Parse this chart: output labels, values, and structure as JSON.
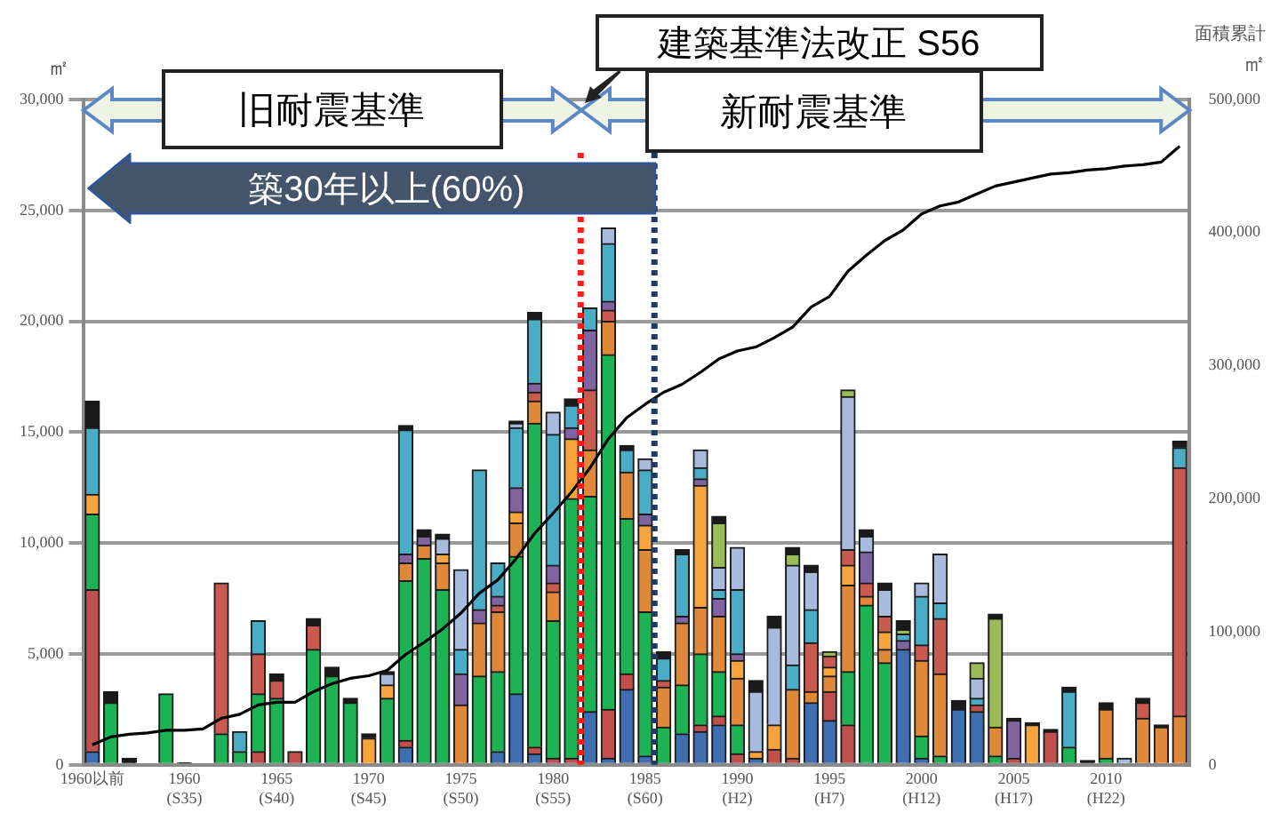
{
  "chart_data": {
    "type": "bar",
    "stacked": true,
    "ylabel": "㎡",
    "y2label": "㎡",
    "annotations": [
      "旧耐震基準",
      "新耐震基準",
      "築30年以上(60%)",
      "面積累計",
      "建築基準法改正 S56"
    ],
    "categories": [
      "1960以前",
      null,
      null,
      null,
      null,
      "1960\n(S35)",
      null,
      null,
      null,
      null,
      "1965\n(S40)",
      null,
      null,
      null,
      null,
      "1970\n(S45)",
      null,
      null,
      null,
      null,
      "1975\n(S50)",
      null,
      null,
      null,
      null,
      "1980\n(S55)",
      null,
      null,
      null,
      null,
      "1985\n(S60)",
      null,
      null,
      null,
      null,
      "1990\n(H2)",
      null,
      null,
      null,
      null,
      "1995\n(H7)",
      null,
      null,
      null,
      null,
      "2000\n(H12)",
      null,
      null,
      null,
      null,
      "2005\n(H17)",
      null,
      null,
      null,
      null,
      "2010\n(H22)",
      null,
      null,
      null,
      null
    ],
    "series": [
      {
        "color": "#3f6fb0",
        "values": [
          600,
          null,
          null,
          null,
          null,
          null,
          null,
          null,
          null,
          null,
          null,
          null,
          null,
          null,
          null,
          null,
          null,
          800,
          null,
          null,
          null,
          null,
          600,
          3200,
          500,
          null,
          null,
          2400,
          300,
          3400,
          400,
          null,
          1400,
          1500,
          1800,
          null,
          300,
          null,
          null,
          2800,
          2000,
          null,
          null,
          null,
          5200,
          300,
          null,
          2500,
          2400,
          null,
          null,
          null,
          null,
          null,
          null,
          null,
          null,
          null,
          null,
          null
        ]
      },
      {
        "color": "#c0504d",
        "values": [
          7300,
          null,
          null,
          null,
          null,
          null,
          null,
          null,
          null,
          600,
          null,
          600,
          null,
          null,
          null,
          null,
          null,
          300,
          null,
          null,
          null,
          null,
          null,
          null,
          300,
          300,
          300,
          null,
          2200,
          700,
          null,
          null,
          null,
          300,
          400,
          500,
          null,
          700,
          300,
          null,
          1300,
          1800,
          null,
          null,
          null,
          null,
          null,
          null,
          300,
          null,
          300,
          null,
          1500,
          null,
          null,
          null,
          null,
          null,
          null,
          null
        ]
      },
      {
        "color": "#1db254",
        "values": [
          3400,
          2800,
          null,
          null,
          3200,
          null,
          null,
          1400,
          600,
          2600,
          3000,
          null,
          5200,
          4000,
          2800,
          null,
          3000,
          7200,
          9300,
          7900,
          null,
          4000,
          3600,
          6200,
          14600,
          6200,
          11700,
          9700,
          16000,
          7000,
          6500,
          1700,
          2200,
          3200,
          2000,
          1300,
          null,
          null,
          null,
          null,
          null,
          2400,
          7200,
          4600,
          null,
          1000,
          400,
          null,
          null,
          400,
          null,
          null,
          null,
          800,
          null,
          300,
          null,
          null,
          null,
          null
        ]
      },
      {
        "color": "#e0883a",
        "values": [
          null,
          null,
          null,
          null,
          null,
          null,
          null,
          null,
          null,
          null,
          null,
          null,
          null,
          null,
          null,
          null,
          null,
          800,
          600,
          1200,
          2700,
          2400,
          2700,
          1500,
          1000,
          1300,
          null,
          2100,
          1500,
          2100,
          2800,
          1800,
          2800,
          2100,
          2500,
          2100,
          null,
          null,
          3100,
          500,
          700,
          3900,
          400,
          600,
          null,
          3400,
          3700,
          null,
          null,
          1300,
          null,
          null,
          null,
          null,
          null,
          2200,
          null,
          2100,
          1700,
          2200
        ]
      },
      {
        "color": "#f7a43f",
        "values": [
          900,
          null,
          null,
          null,
          null,
          null,
          null,
          null,
          null,
          null,
          null,
          null,
          null,
          null,
          null,
          1200,
          600,
          null,
          null,
          400,
          null,
          null,
          null,
          500,
          null,
          null,
          2700,
          null,
          null,
          null,
          1100,
          null,
          null,
          5500,
          null,
          800,
          300,
          1100,
          null,
          null,
          400,
          900,
          null,
          800,
          null,
          null,
          null,
          null,
          null,
          null,
          null,
          1800,
          null,
          null,
          null,
          null,
          null,
          null,
          null,
          null
        ]
      },
      {
        "color": "#c85a50",
        "values": [
          null,
          null,
          null,
          null,
          null,
          null,
          null,
          6800,
          null,
          1800,
          800,
          null,
          1100,
          null,
          null,
          null,
          null,
          null,
          null,
          null,
          null,
          null,
          300,
          null,
          400,
          400,
          null,
          2700,
          500,
          null,
          null,
          300,
          null,
          null,
          null,
          null,
          null,
          null,
          null,
          2200,
          500,
          700,
          600,
          700,
          null,
          700,
          2500,
          null,
          null,
          null,
          null,
          null,
          null,
          null,
          null,
          null,
          null,
          700,
          null,
          11200
        ]
      },
      {
        "color": "#8064a2",
        "values": [
          null,
          null,
          null,
          null,
          null,
          null,
          null,
          null,
          null,
          null,
          null,
          null,
          null,
          null,
          null,
          null,
          null,
          400,
          400,
          null,
          1400,
          600,
          400,
          1100,
          400,
          800,
          500,
          2700,
          400,
          null,
          500,
          null,
          300,
          300,
          800,
          300,
          null,
          null,
          null,
          null,
          null,
          null,
          1400,
          null,
          400,
          null,
          null,
          null,
          null,
          null,
          1700,
          null,
          null,
          null,
          null,
          null,
          null,
          null,
          null,
          null
        ]
      },
      {
        "color": "#4bacc6",
        "values": [
          3000,
          null,
          null,
          null,
          null,
          null,
          null,
          null,
          900,
          1500,
          null,
          null,
          null,
          null,
          null,
          null,
          null,
          5600,
          null,
          null,
          1100,
          6300,
          1500,
          2700,
          2900,
          5900,
          1000,
          1000,
          2600,
          1000,
          2000,
          1000,
          2800,
          500,
          400,
          2900,
          null,
          null,
          1100,
          1500,
          null,
          null,
          null,
          null,
          300,
          2200,
          700,
          null,
          300,
          null,
          null,
          null,
          null,
          2500,
          null,
          null,
          null,
          null,
          null,
          900
        ]
      },
      {
        "color": "#a8bbdc",
        "values": [
          null,
          null,
          null,
          null,
          null,
          null,
          null,
          null,
          null,
          null,
          null,
          null,
          null,
          null,
          null,
          null,
          500,
          null,
          null,
          700,
          3600,
          null,
          null,
          200,
          null,
          1000,
          null,
          null,
          700,
          null,
          500,
          null,
          null,
          800,
          1000,
          1900,
          2700,
          4400,
          4500,
          1700,
          null,
          6900,
          700,
          1200,
          null,
          600,
          2200,
          null,
          900,
          null,
          null,
          null,
          null,
          null,
          null,
          null,
          300,
          null,
          null,
          null
        ]
      },
      {
        "color": "#9bbb59",
        "values": [
          null,
          null,
          null,
          null,
          null,
          null,
          null,
          null,
          null,
          null,
          null,
          null,
          null,
          null,
          null,
          null,
          null,
          null,
          null,
          null,
          null,
          null,
          null,
          null,
          null,
          null,
          null,
          null,
          null,
          null,
          null,
          null,
          null,
          null,
          2000,
          null,
          null,
          null,
          500,
          null,
          200,
          300,
          null,
          null,
          200,
          null,
          null,
          null,
          700,
          4900,
          null,
          null,
          null,
          null,
          null,
          null,
          null,
          null,
          null,
          null
        ]
      },
      {
        "color": "#1a1a1a",
        "values": [
          1200,
          500,
          300,
          null,
          null,
          100,
          null,
          null,
          null,
          null,
          300,
          null,
          300,
          400,
          200,
          200,
          100,
          200,
          300,
          200,
          null,
          null,
          null,
          100,
          300,
          null,
          300,
          null,
          null,
          200,
          null,
          300,
          200,
          null,
          300,
          null,
          500,
          500,
          300,
          300,
          null,
          null,
          300,
          300,
          400,
          null,
          null,
          400,
          null,
          200,
          100,
          100,
          100,
          200,
          200,
          300,
          null,
          200,
          100,
          300
        ]
      },
      {
        "type": "line",
        "axis": "y2",
        "color": "#000000",
        "values": [
          15000,
          21000,
          23000,
          24000,
          26000,
          26000,
          27000,
          35000,
          38000,
          45000,
          47000,
          47000,
          55000,
          61000,
          65000,
          67000,
          71000,
          83000,
          92000,
          102000,
          114000,
          129000,
          139000,
          155000,
          174000,
          189000,
          205000,
          223000,
          245000,
          261000,
          271000,
          280000,
          286000,
          295000,
          305000,
          311000,
          314000,
          321000,
          329000,
          344000,
          352000,
          371000,
          383000,
          394000,
          402000,
          414000,
          420000,
          423000,
          429000,
          435000,
          438000,
          441000,
          444000,
          445000,
          447000,
          448000,
          450000,
          451000,
          453000,
          465000
        ]
      }
    ],
    "ylim": [
      0,
      30000
    ],
    "yticks": [
      0,
      {
        "value": 5000,
        "label": "5,000"
      },
      {
        "value": 10000,
        "label": "10,000"
      },
      {
        "value": 15000,
        "label": "15,000"
      },
      {
        "value": 20000,
        "label": "20,000"
      },
      {
        "value": 25000,
        "label": "25,000"
      },
      {
        "value": 30000,
        "label": "30,000"
      }
    ],
    "y2lim": [
      0,
      500000
    ],
    "y2ticks": [
      0,
      {
        "value": 100000,
        "label": "100,000"
      },
      {
        "value": 200000,
        "label": "200,000"
      },
      {
        "value": 300000,
        "label": "300,000"
      },
      {
        "value": 400000,
        "label": "400,000"
      },
      {
        "value": 500000,
        "label": "500,000"
      }
    ],
    "grid": "y",
    "legend": false,
    "marker": "none"
  }
}
